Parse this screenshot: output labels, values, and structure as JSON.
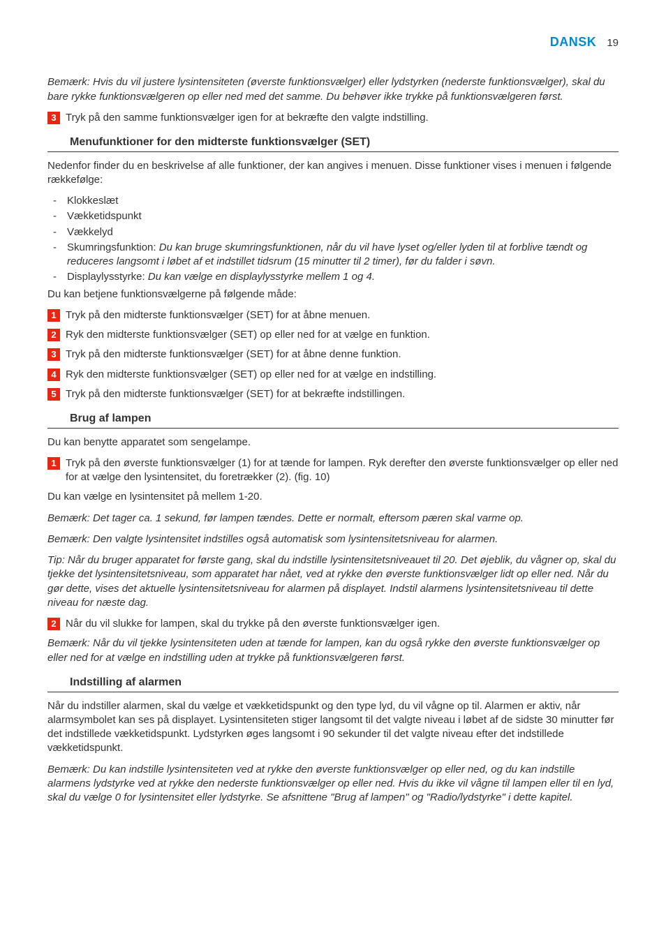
{
  "header": {
    "language": "DANSK",
    "page_number": "19"
  },
  "intro_note": "Bemærk: Hvis du vil justere lysintensiteten (øverste funktionsvælger) eller lydstyrken (nederste funktionsvælger), skal du bare rykke funktionsvælgeren op eller ned med det samme. Du behøver ikke trykke på funktionsvælgeren først.",
  "intro_step3": "Tryk på den samme funktionsvælger igen for at bekræfte den valgte indstilling.",
  "section1": {
    "heading": "Menufunktioner for den midterste funktionsvælger (SET)",
    "intro": "Nedenfor finder du en beskrivelse af alle funktioner, der kan angives i menuen. Disse funktioner vises i menuen i følgende rækkefølge:",
    "bullets": {
      "b1": "Klokkeslæt",
      "b2": "Vækketidspunkt",
      "b3": "Vækkelyd",
      "b4_prefix": "Skumringsfunktion: ",
      "b4_italic": "Du kan bruge skumringsfunktionen, når du vil have lyset og/eller lyden til at forblive tændt og reduceres langsomt i løbet af et indstillet tidsrum (15 minutter til 2 timer), før du falder i søvn.",
      "b5_prefix": "Displaylysstyrke: ",
      "b5_italic": "Du kan vælge en displaylysstyrke mellem 1 og 4."
    },
    "after_bullets": "Du kan betjene funktionsvælgerne på følgende måde:",
    "steps": {
      "s1": "Tryk på den midterste funktionsvælger (SET) for at åbne menuen.",
      "s2": "Ryk den midterste funktionsvælger (SET) op eller ned for at vælge en funktion.",
      "s3": "Tryk på den midterste funktionsvælger (SET) for at åbne denne funktion.",
      "s4": "Ryk den midterste funktionsvælger (SET) op eller ned for at vælge en indstilling.",
      "s5": "Tryk på den midterste funktionsvælger (SET) for at bekræfte indstillingen."
    }
  },
  "section2": {
    "heading": "Brug af lampen",
    "intro": "Du kan benytte apparatet som sengelampe.",
    "step1": "Tryk på den øverste funktionsvælger (1) for at tænde for lampen. Ryk derefter den øverste funktionsvælger op eller ned for at vælge den lysintensitet, du foretrækker (2).  (fig. 10)",
    "step1_follow": "Du kan vælge en lysintensitet på mellem 1-20.",
    "note1": "Bemærk: Det tager ca. 1 sekund, før lampen tændes. Dette er normalt, eftersom pæren skal varme op.",
    "note2": "Bemærk: Den valgte lysintensitet indstilles også automatisk som lysintensitetsniveau for alarmen.",
    "tip": "Tip: Når du bruger apparatet for første gang, skal du indstille lysintensitetsniveauet til 20. Det øjeblik, du vågner op, skal du tjekke det lysintensitetsniveau, som apparatet har nået, ved at rykke den øverste funktionsvælger lidt op eller ned. Når du gør dette, vises det aktuelle lysintensitetsniveau for alarmen på displayet. Indstil alarmens lysintensitetsniveau til dette niveau for næste dag.",
    "step2": "Når du vil slukke for lampen, skal du trykke på den øverste funktionsvælger igen.",
    "note3": "Bemærk: Når du vil tjekke lysintensiteten uden at tænde for lampen, kan du også rykke den øverste funktionsvælger op eller ned for at vælge en indstilling uden at trykke på funktionsvælgeren først."
  },
  "section3": {
    "heading": "Indstilling af alarmen",
    "intro": "Når du indstiller alarmen, skal du vælge et vækketidspunkt og den type lyd, du vil vågne op til. Alarmen er aktiv, når alarmsymbolet kan ses på displayet. Lysintensiteten stiger langsomt til det valgte niveau i løbet af de sidste 30 minutter før det indstillede vækketidspunkt. Lydstyrken øges langsomt i 90 sekunder til det valgte niveau efter det indstillede vækketidspunkt.",
    "note": "Bemærk: Du kan indstille lysintensiteten ved at rykke den øverste funktionsvælger op eller ned, og du kan indstille alarmens lydstyrke ved at rykke den nederste funktionsvælger op eller ned. Hvis du ikke vil vågne til lampen eller til en lyd, skal du vælge 0 for lysintensitet eller lydstyrke. Se afsnittene \"Brug af lampen\" og \"Radio/lydstyrke\" i dette kapitel."
  },
  "nums": {
    "n1": "1",
    "n2": "2",
    "n3": "3",
    "n4": "4",
    "n5": "5"
  }
}
